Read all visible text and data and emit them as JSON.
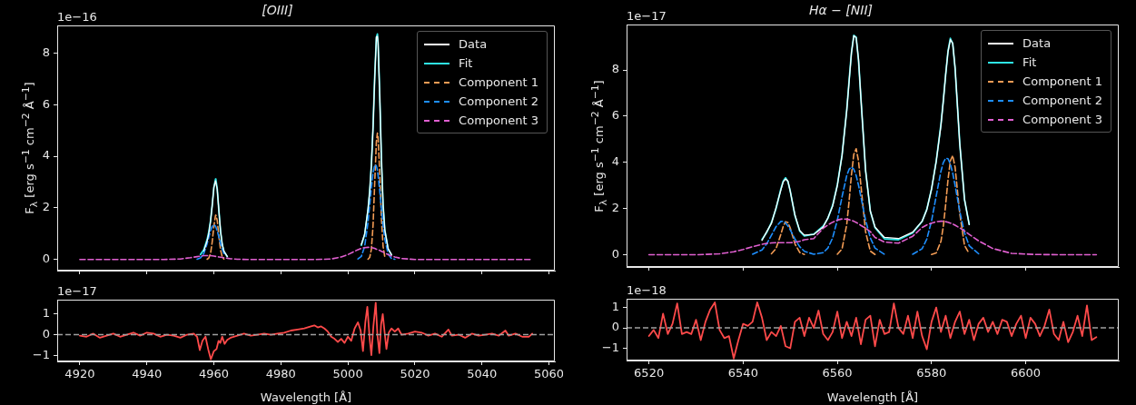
{
  "chart_data": [
    {
      "type": "line",
      "title": "[OIII]",
      "ylabel": "F$_{λ}$ [erg s$^{−1}$ cm$^{−2}$ Å$^{−1}$]",
      "annotations": [
        "1e−16"
      ],
      "legend": "top right",
      "tick_labels": "y",
      "xlim": [
        4913.25,
        5061.75
      ],
      "xticks": [
        4920,
        4940,
        4960,
        4980,
        5000,
        5020,
        5040,
        5060
      ],
      "ylim": [
        -0.43,
        9.07
      ],
      "yticks": [
        0,
        2,
        4,
        6,
        8
      ],
      "x": [
        4920,
        4935,
        4945,
        4950,
        4953,
        4955,
        4956,
        4957,
        4958,
        4958.5,
        4959,
        4959.5,
        4960,
        4960.5,
        4960.6,
        4961,
        4961.5,
        4962,
        4962.5,
        4963,
        4964,
        4965,
        4967,
        4970,
        4980,
        4990,
        4995,
        4998,
        5000,
        5002,
        5003,
        5004,
        5005,
        5006,
        5006.5,
        5007,
        5007.5,
        5008,
        5008.5,
        5008.8,
        5009,
        5009.5,
        5010,
        5010.5,
        5011,
        5012,
        5013,
        5014,
        5016,
        5020,
        5030,
        5040,
        5055
      ],
      "series": [
        {
          "name": "Data",
          "color": "#ffffff",
          "line_style": "solid",
          "values": [
            null,
            null,
            null,
            null,
            null,
            null,
            null,
            0.33,
            0.72,
            1.02,
            1.47,
            2.08,
            2.8,
            3.05,
            3.05,
            2.72,
            1.9,
            1.1,
            0.59,
            0.32,
            0.12,
            null,
            null,
            null,
            null,
            null,
            null,
            null,
            null,
            null,
            null,
            0.58,
            0.99,
            1.95,
            2.62,
            3.66,
            5.1,
            7.05,
            8.62,
            8.65,
            8.41,
            6.33,
            3.9,
            2.13,
            1.15,
            0.42,
            0.19,
            null,
            null,
            null,
            null,
            null,
            null
          ]
        },
        {
          "name": "Fit",
          "color": "#2ee6e6",
          "line_style": "solid",
          "values": [
            null,
            null,
            null,
            null,
            null,
            null,
            0.19,
            0.38,
            0.78,
            1.08,
            1.49,
            2.1,
            2.78,
            3.12,
            3.1,
            2.74,
            1.88,
            1.08,
            0.58,
            0.32,
            0.11,
            null,
            null,
            null,
            null,
            null,
            null,
            null,
            null,
            null,
            null,
            0.55,
            0.96,
            1.92,
            2.65,
            3.64,
            5.12,
            7.07,
            8.6,
            8.74,
            8.4,
            6.35,
            3.88,
            2.12,
            1.16,
            0.41,
            0.18,
            null,
            null,
            null,
            null,
            null,
            null
          ]
        },
        {
          "name": "Component 1",
          "color": "#f39c55",
          "line_style": "dashed",
          "values": [
            null,
            null,
            null,
            null,
            null,
            null,
            null,
            null,
            0.01,
            0.06,
            0.23,
            0.67,
            1.3,
            1.71,
            1.72,
            1.52,
            0.91,
            0.37,
            0.1,
            0.02,
            null,
            null,
            null,
            null,
            null,
            null,
            null,
            null,
            null,
            null,
            null,
            null,
            null,
            0.01,
            0.08,
            0.39,
            1.31,
            2.97,
            4.57,
            4.9,
            4.75,
            3.34,
            1.59,
            0.51,
            0.11,
            null,
            null,
            null,
            null,
            null,
            null,
            null,
            null
          ]
        },
        {
          "name": "Component 2",
          "color": "#1e8fff",
          "line_style": "dashed",
          "values": [
            null,
            null,
            null,
            null,
            null,
            0.01,
            0.06,
            0.23,
            0.62,
            0.87,
            1.11,
            1.29,
            1.35,
            1.29,
            1.26,
            1.11,
            0.87,
            0.62,
            0.4,
            0.23,
            null,
            null,
            null,
            null,
            null,
            null,
            null,
            null,
            null,
            null,
            0.02,
            0.12,
            0.5,
            1.44,
            2.1,
            2.79,
            3.36,
            3.67,
            3.63,
            3.45,
            3.27,
            2.66,
            1.97,
            1.32,
            0.8,
            0.22,
            0.04,
            0.01,
            null,
            null,
            null,
            null,
            null
          ]
        },
        {
          "name": "Component 3",
          "color": "#e05fd0",
          "line_style": "dashed",
          "values": [
            0,
            0,
            0,
            0.02,
            0.07,
            0.11,
            0.13,
            0.15,
            0.15,
            0.15,
            0.15,
            0.14,
            0.13,
            0.12,
            0.12,
            0.11,
            0.1,
            0.09,
            0.08,
            0.07,
            0.05,
            0.03,
            0.01,
            0,
            0,
            0,
            0.02,
            0.1,
            0.19,
            0.32,
            0.38,
            0.43,
            0.46,
            0.47,
            0.47,
            0.46,
            0.45,
            0.43,
            0.4,
            0.39,
            0.38,
            0.35,
            0.32,
            0.29,
            0.25,
            0.19,
            0.14,
            0.1,
            0.04,
            0,
            0,
            0,
            0
          ]
        }
      ]
    },
    {
      "type": "line",
      "xlabel": "Wavelength [Å]",
      "annotations": [
        "1e−17"
      ],
      "xlim": [
        4913.25,
        5061.75
      ],
      "xticks": [
        4920,
        4940,
        4960,
        4980,
        5000,
        5020,
        5040,
        5060
      ],
      "ylim": [
        -1.3,
        1.7
      ],
      "yticks": [
        {
          "value": -1,
          "label": "−1"
        },
        0,
        1
      ],
      "ref_lines": [
        {
          "axis": "y",
          "value": 0,
          "color": "#a0a0a0",
          "line_style": "dashed"
        }
      ],
      "x": [
        4920,
        4922,
        4924,
        4926,
        4928,
        4930,
        4932,
        4934,
        4936,
        4938,
        4940,
        4942,
        4944,
        4946,
        4948,
        4950,
        4952,
        4954,
        4955,
        4955.8,
        4956.6,
        4957.5,
        4958.3,
        4959.1,
        4960,
        4960.8,
        4961.4,
        4961.9,
        4962.5,
        4963.2,
        4964,
        4965,
        4967,
        4969,
        4971,
        4973,
        4975,
        4977,
        4979,
        4981,
        4983,
        4985,
        4987,
        4989,
        4990,
        4991,
        4992,
        4993,
        4994,
        4995,
        4996,
        4997,
        4998,
        4999,
        5000,
        5001,
        5002,
        5003,
        5003.8,
        5004.5,
        5005.2,
        5005.8,
        5006.5,
        5007,
        5007.6,
        5008.3,
        5008.8,
        5009.4,
        5009.9,
        5010.4,
        5010.9,
        5011.5,
        5012.2,
        5013,
        5014,
        5015,
        5016,
        5018,
        5020,
        5022,
        5024,
        5026,
        5028,
        5030,
        5031,
        5033,
        5035,
        5037,
        5039,
        5041,
        5043,
        5045,
        5047,
        5048,
        5050,
        5052,
        5054,
        5055
      ],
      "series": [
        {
          "color": "#ff4a4a",
          "line_style": "solid",
          "values": [
            -0.05,
            -0.1,
            0.05,
            -0.15,
            -0.05,
            0.05,
            -0.1,
            0,
            0.1,
            -0.05,
            0.1,
            0.05,
            -0.1,
            0,
            -0.05,
            -0.15,
            0,
            0.05,
            -0.1,
            -0.75,
            -0.3,
            -0.1,
            -0.7,
            -1.2,
            -0.8,
            -0.7,
            -0.3,
            -0.4,
            -0.1,
            -0.45,
            -0.25,
            -0.15,
            -0.05,
            0.05,
            -0.05,
            0,
            0.05,
            0,
            0.05,
            0.1,
            0.2,
            0.25,
            0.3,
            0.4,
            0.45,
            0.35,
            0.4,
            0.3,
            0.15,
            -0.1,
            -0.2,
            -0.35,
            -0.2,
            -0.4,
            -0.1,
            -0.3,
            0.3,
            0.6,
            0.2,
            -0.8,
            0.6,
            1.35,
            -0.2,
            -1,
            0.4,
            1.55,
            0,
            -0.9,
            0.5,
            1,
            0.2,
            -0.7,
            0.1,
            0.3,
            0.15,
            0.3,
            0,
            0.05,
            0.15,
            0.1,
            -0.05,
            0.05,
            -0.1,
            0.25,
            -0.05,
            0,
            -0.15,
            0.05,
            -0.05,
            0,
            0.05,
            -0.05,
            0.2,
            -0.05,
            0.05,
            -0.1,
            -0.1,
            0.05
          ]
        }
      ]
    },
    {
      "type": "line",
      "title": "Hα − [NII]",
      "ylabel": "F$_{λ}$ [erg s$^{−1}$ cm$^{−2}$ Å$^{−1}$]",
      "annotations": [
        "1e−17"
      ],
      "legend": "top right",
      "tick_labels": "y",
      "xlim": [
        6515.25,
        6619.75
      ],
      "xticks": [
        6520,
        6540,
        6560,
        6580,
        6600
      ],
      "ylim": [
        -0.53,
        9.97
      ],
      "yticks": [
        0,
        2,
        4,
        6,
        8
      ],
      "x": [
        6520,
        6525,
        6530,
        6535,
        6538,
        6540,
        6542,
        6544,
        6545,
        6546,
        6547,
        6548,
        6548.5,
        6549,
        6549.5,
        6550,
        6551,
        6552,
        6553,
        6555,
        6557,
        6558,
        6559,
        6560,
        6561,
        6562,
        6562.5,
        6563,
        6563.5,
        6564,
        6564.5,
        6565,
        6566,
        6567,
        6568,
        6570,
        6573,
        6576,
        6578,
        6579,
        6580,
        6581,
        6582,
        6582.5,
        6583,
        6583.5,
        6584,
        6584.5,
        6585,
        6586,
        6587,
        6588,
        6590,
        6593,
        6597,
        6602,
        6608,
        6615
      ],
      "series": [
        {
          "name": "Data",
          "color": "#ffffff",
          "line_style": "solid",
          "values": [
            null,
            null,
            null,
            null,
            null,
            null,
            null,
            0.62,
            1,
            1.35,
            2.05,
            2.8,
            3.15,
            3.28,
            3.2,
            2.75,
            1.72,
            1.05,
            0.85,
            0.88,
            1.2,
            1.6,
            2.1,
            3,
            4.3,
            6.25,
            7.5,
            8.75,
            9.48,
            9.4,
            8.45,
            6.8,
            3.65,
            1.9,
            1.2,
            0.75,
            0.7,
            0.98,
            1.45,
            1.95,
            2.85,
            4.05,
            5.6,
            6.65,
            7.8,
            8.8,
            9.32,
            9.15,
            8.1,
            4.8,
            2.4,
            1.3,
            null,
            null,
            null,
            null,
            null,
            null
          ]
        },
        {
          "name": "Fit",
          "color": "#2ee6e6",
          "line_style": "solid",
          "values": [
            null,
            null,
            null,
            null,
            null,
            null,
            null,
            0.66,
            0.96,
            1.39,
            2.01,
            2.84,
            3.19,
            3.33,
            3.17,
            2.76,
            1.69,
            1.03,
            0.81,
            0.89,
            1.24,
            1.58,
            2.14,
            3.02,
            4.31,
            6.28,
            7.55,
            8.76,
            9.5,
            9.42,
            8.41,
            6.8,
            3.64,
            1.89,
            1.17,
            0.69,
            0.65,
            0.95,
            1.44,
            1.97,
            2.84,
            4.06,
            5.65,
            6.67,
            7.79,
            8.82,
            9.37,
            9.15,
            8.08,
            4.8,
            2.39,
            1.32,
            null,
            null,
            null,
            null,
            null,
            null
          ]
        },
        {
          "name": "Component 1",
          "color": "#f39c55",
          "line_style": "dashed",
          "values": [
            null,
            null,
            null,
            null,
            null,
            null,
            null,
            null,
            null,
            0.04,
            0.27,
            0.88,
            1.22,
            1.43,
            1.4,
            1.16,
            0.47,
            0.1,
            0.01,
            null,
            null,
            null,
            null,
            0.02,
            0.25,
            1.31,
            2.33,
            3.47,
            4.35,
            4.59,
            4.06,
            3.02,
            0.99,
            0.16,
            0.01,
            null,
            null,
            null,
            null,
            null,
            0.01,
            0.08,
            0.58,
            1.23,
            2.18,
            3.25,
            4.07,
            4.29,
            3.79,
            1.77,
            0.41,
            0.05,
            null,
            null,
            null,
            null,
            null,
            null
          ]
        },
        {
          "name": "Component 2",
          "color": "#1e8fff",
          "line_style": "dashed",
          "values": [
            null,
            null,
            null,
            null,
            null,
            null,
            0.02,
            0.21,
            0.47,
            0.84,
            1.22,
            1.44,
            1.45,
            1.38,
            1.25,
            1.08,
            0.68,
            0.35,
            0.15,
            0.02,
            0.09,
            0.29,
            0.73,
            1.5,
            2.51,
            3.43,
            3.7,
            3.8,
            3.7,
            3.43,
            3.01,
            2.51,
            1.5,
            0.73,
            0.29,
            0.02,
            null,
            0.02,
            0.26,
            0.68,
            1.46,
            2.55,
            3.62,
            3.99,
            4.18,
            4.16,
            3.93,
            3.53,
            3.01,
            1.87,
            0.95,
            0.39,
            0.04,
            null,
            null,
            null,
            null,
            null
          ]
        },
        {
          "name": "Component 3",
          "color": "#e05fd0",
          "line_style": "dashed",
          "values": [
            0,
            0,
            0,
            0.04,
            0.13,
            0.23,
            0.35,
            0.45,
            0.49,
            0.51,
            0.52,
            0.52,
            0.52,
            0.52,
            0.52,
            0.52,
            0.54,
            0.58,
            0.65,
            0.7,
            1.15,
            1.29,
            1.41,
            1.5,
            1.55,
            1.54,
            1.52,
            1.49,
            1.45,
            1.4,
            1.34,
            1.27,
            1.15,
            1,
            0.75,
            0.55,
            0.5,
            0.8,
            1.18,
            1.29,
            1.37,
            1.43,
            1.45,
            1.45,
            1.43,
            1.41,
            1.37,
            1.33,
            1.28,
            1.16,
            1.03,
            0.88,
            0.6,
            0.27,
            0.06,
            0.01,
            0,
            0
          ]
        }
      ]
    },
    {
      "type": "line",
      "xlabel": "Wavelength [Å]",
      "annotations": [
        "1e−18"
      ],
      "xlim": [
        6515.25,
        6619.75
      ],
      "xticks": [
        6520,
        6540,
        6560,
        6580,
        6600
      ],
      "ylim": [
        -1.6,
        1.43
      ],
      "yticks": [
        {
          "value": -1,
          "label": "−1"
        },
        0,
        1
      ],
      "ref_lines": [
        {
          "axis": "y",
          "value": 0,
          "color": "#a0a0a0",
          "line_style": "dashed"
        }
      ],
      "x": [
        6520,
        6521,
        6522,
        6523,
        6524,
        6525,
        6526,
        6527,
        6528,
        6529,
        6530,
        6531,
        6532,
        6533,
        6534,
        6535,
        6536,
        6537,
        6538,
        6539,
        6540,
        6541,
        6542,
        6543,
        6544,
        6545,
        6546,
        6547,
        6548,
        6549,
        6550,
        6551,
        6552,
        6553,
        6554,
        6555,
        6556,
        6557,
        6558,
        6559,
        6560,
        6561,
        6562,
        6563,
        6564,
        6565,
        6566,
        6567,
        6568,
        6569,
        6570,
        6571,
        6572,
        6573,
        6574,
        6575,
        6576,
        6577,
        6578,
        6579,
        6580,
        6581,
        6582,
        6583,
        6584,
        6585,
        6586,
        6587,
        6588,
        6589,
        6590,
        6591,
        6592,
        6593,
        6594,
        6595,
        6596,
        6597,
        6598,
        6599,
        6600,
        6601,
        6602,
        6603,
        6604,
        6605,
        6606,
        6607,
        6608,
        6609,
        6610,
        6611,
        6612,
        6613,
        6614,
        6615
      ],
      "series": [
        {
          "color": "#ff4a4a",
          "line_style": "solid",
          "values": [
            -0.4,
            -0.1,
            -0.5,
            0.7,
            -0.3,
            0.2,
            1.2,
            -0.3,
            -0.2,
            -0.3,
            0.4,
            -0.6,
            0.3,
            0.9,
            1.25,
            -0.1,
            -0.5,
            -0.4,
            -1.5,
            -0.6,
            0.2,
            0.1,
            0.3,
            1.25,
            0.5,
            -0.6,
            -0.2,
            -0.4,
            0.1,
            -0.9,
            -1,
            0.3,
            0.5,
            -0.4,
            0.5,
            0,
            0.85,
            -0.3,
            -0.6,
            -0.2,
            0.8,
            -0.5,
            0.3,
            -0.4,
            0.5,
            -0.8,
            0.4,
            0.6,
            -0.9,
            0.4,
            -0.3,
            -0.2,
            1.2,
            0,
            -0.3,
            0.6,
            -0.5,
            0.8,
            -0.4,
            -1.05,
            0.3,
            1,
            -0.2,
            0.6,
            -0.5,
            0.3,
            0.8,
            -0.3,
            0.4,
            -0.6,
            0.2,
            0.5,
            -0.2,
            0.3,
            -0.3,
            0.4,
            0.3,
            -0.4,
            0.2,
            0.6,
            -0.5,
            0.5,
            0.2,
            -0.4,
            0.1,
            0.9,
            -0.3,
            -0.6,
            0.3,
            -0.7,
            -0.2,
            0.6,
            -0.4,
            1.1,
            -0.6,
            -0.45
          ]
        }
      ]
    }
  ]
}
